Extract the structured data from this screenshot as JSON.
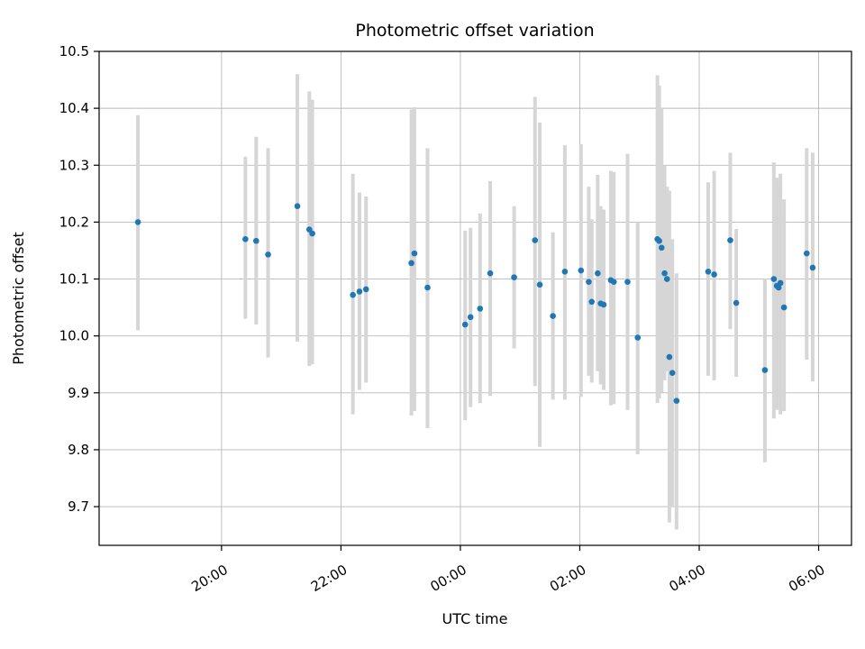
{
  "figure": {
    "title": "Photometric offset variation",
    "xlabel": "UTC time",
    "ylabel": "Photometric offset"
  },
  "chart_data": {
    "type": "scatter",
    "title": "Photometric offset variation",
    "xlabel": "UTC time",
    "ylabel": "Photometric offset",
    "legend": null,
    "grid": true,
    "x_unit": "UTC hours (continuous, >24 = past midnight)",
    "xlim": [
      17.95,
      30.55
    ],
    "ylim": [
      9.632,
      10.5
    ],
    "x_ticks": [
      {
        "t": 20,
        "label": "20:00"
      },
      {
        "t": 22,
        "label": "22:00"
      },
      {
        "t": 24,
        "label": "00:00"
      },
      {
        "t": 26,
        "label": "02:00"
      },
      {
        "t": 28,
        "label": "04:00"
      },
      {
        "t": 30,
        "label": "06:00"
      }
    ],
    "y_ticks": [
      9.7,
      9.8,
      9.9,
      10.0,
      10.1,
      10.2,
      10.3,
      10.4,
      10.5
    ],
    "point_color": "#1f77b4",
    "errorbar_color": "#d6d6d6",
    "grid_color": "#b8b8b8",
    "spine_color": "#000000",
    "points": [
      {
        "t": 18.6,
        "y": 10.2,
        "lo": 10.01,
        "hi": 10.388
      },
      {
        "t": 20.4,
        "y": 10.17,
        "lo": 10.03,
        "hi": 10.315
      },
      {
        "t": 20.58,
        "y": 10.167,
        "lo": 10.02,
        "hi": 10.35
      },
      {
        "t": 20.78,
        "y": 10.143,
        "lo": 9.962,
        "hi": 10.33
      },
      {
        "t": 21.27,
        "y": 10.228,
        "lo": 9.99,
        "hi": 10.46
      },
      {
        "t": 21.47,
        "y": 10.187,
        "lo": 9.947,
        "hi": 10.43
      },
      {
        "t": 21.52,
        "y": 10.18,
        "lo": 9.95,
        "hi": 10.415
      },
      {
        "t": 22.2,
        "y": 10.072,
        "lo": 9.862,
        "hi": 10.285
      },
      {
        "t": 22.31,
        "y": 10.078,
        "lo": 9.905,
        "hi": 10.252
      },
      {
        "t": 22.42,
        "y": 10.082,
        "lo": 9.918,
        "hi": 10.245
      },
      {
        "t": 23.18,
        "y": 10.128,
        "lo": 9.86,
        "hi": 10.398
      },
      {
        "t": 23.23,
        "y": 10.145,
        "lo": 9.868,
        "hi": 10.402
      },
      {
        "t": 23.45,
        "y": 10.085,
        "lo": 9.838,
        "hi": 10.33
      },
      {
        "t": 24.08,
        "y": 10.02,
        "lo": 9.852,
        "hi": 10.185
      },
      {
        "t": 24.17,
        "y": 10.033,
        "lo": 9.875,
        "hi": 10.19
      },
      {
        "t": 24.33,
        "y": 10.048,
        "lo": 9.882,
        "hi": 10.215
      },
      {
        "t": 24.5,
        "y": 10.11,
        "lo": 9.895,
        "hi": 10.272
      },
      {
        "t": 24.9,
        "y": 10.103,
        "lo": 9.978,
        "hi": 10.228
      },
      {
        "t": 25.25,
        "y": 10.168,
        "lo": 9.912,
        "hi": 10.42
      },
      {
        "t": 25.33,
        "y": 10.09,
        "lo": 9.805,
        "hi": 10.375
      },
      {
        "t": 25.55,
        "y": 10.035,
        "lo": 9.888,
        "hi": 10.182
      },
      {
        "t": 25.75,
        "y": 10.113,
        "lo": 9.888,
        "hi": 10.335
      },
      {
        "t": 26.02,
        "y": 10.115,
        "lo": 9.893,
        "hi": 10.337
      },
      {
        "t": 26.15,
        "y": 10.095,
        "lo": 9.93,
        "hi": 10.262
      },
      {
        "t": 26.2,
        "y": 10.06,
        "lo": 9.918,
        "hi": 10.205
      },
      {
        "t": 26.3,
        "y": 10.11,
        "lo": 9.938,
        "hi": 10.283
      },
      {
        "t": 26.35,
        "y": 10.057,
        "lo": 9.915,
        "hi": 10.228
      },
      {
        "t": 26.4,
        "y": 10.055,
        "lo": 9.905,
        "hi": 10.222
      },
      {
        "t": 26.52,
        "y": 10.098,
        "lo": 9.878,
        "hi": 10.29
      },
      {
        "t": 26.57,
        "y": 10.095,
        "lo": 9.88,
        "hi": 10.288
      },
      {
        "t": 26.8,
        "y": 10.095,
        "lo": 9.87,
        "hi": 10.32
      },
      {
        "t": 26.97,
        "y": 9.997,
        "lo": 9.792,
        "hi": 10.2
      },
      {
        "t": 27.3,
        "y": 10.17,
        "lo": 9.882,
        "hi": 10.458
      },
      {
        "t": 27.33,
        "y": 10.167,
        "lo": 9.89,
        "hi": 10.44
      },
      {
        "t": 27.37,
        "y": 10.155,
        "lo": 9.9,
        "hi": 10.4
      },
      {
        "t": 27.42,
        "y": 10.11,
        "lo": 9.922,
        "hi": 10.3
      },
      {
        "t": 27.46,
        "y": 10.1,
        "lo": 9.938,
        "hi": 10.262
      },
      {
        "t": 27.5,
        "y": 9.963,
        "lo": 9.672,
        "hi": 10.255
      },
      {
        "t": 27.55,
        "y": 9.935,
        "lo": 9.7,
        "hi": 10.17
      },
      {
        "t": 27.62,
        "y": 9.886,
        "lo": 9.66,
        "hi": 10.11
      },
      {
        "t": 28.15,
        "y": 10.113,
        "lo": 9.93,
        "hi": 10.27
      },
      {
        "t": 28.25,
        "y": 10.108,
        "lo": 9.922,
        "hi": 10.29
      },
      {
        "t": 28.52,
        "y": 10.168,
        "lo": 10.012,
        "hi": 10.322
      },
      {
        "t": 28.62,
        "y": 10.058,
        "lo": 9.928,
        "hi": 10.188
      },
      {
        "t": 29.1,
        "y": 9.94,
        "lo": 9.778,
        "hi": 10.1
      },
      {
        "t": 29.25,
        "y": 10.1,
        "lo": 9.855,
        "hi": 10.305
      },
      {
        "t": 29.3,
        "y": 10.088,
        "lo": 9.87,
        "hi": 10.278
      },
      {
        "t": 29.33,
        "y": 10.085,
        "lo": 9.872,
        "hi": 10.27
      },
      {
        "t": 29.36,
        "y": 10.093,
        "lo": 9.862,
        "hi": 10.285
      },
      {
        "t": 29.42,
        "y": 10.05,
        "lo": 9.868,
        "hi": 10.24
      },
      {
        "t": 29.8,
        "y": 10.145,
        "lo": 9.958,
        "hi": 10.33
      },
      {
        "t": 29.9,
        "y": 10.12,
        "lo": 9.92,
        "hi": 10.322
      }
    ]
  }
}
